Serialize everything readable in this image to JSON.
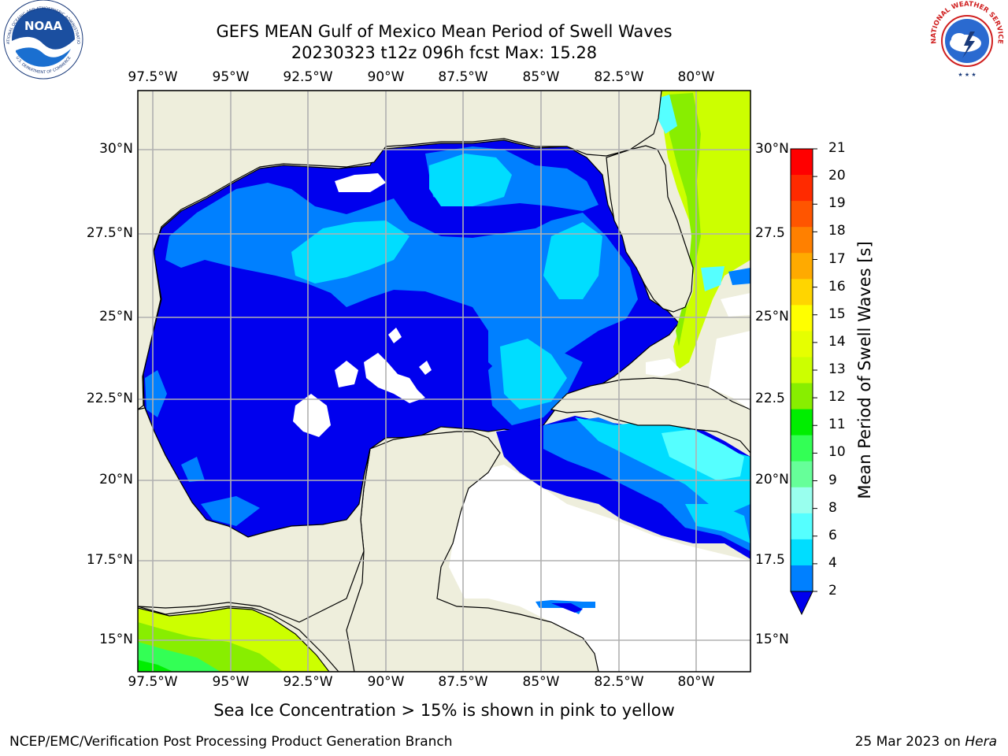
{
  "title": {
    "line1": "GEFS MEAN Gulf of Mexico Mean Period of Swell Waves",
    "line2": "20230323 t12z 096h fcst   Max: 15.28"
  },
  "map": {
    "lon_labels": [
      "97.5°W",
      "95°W",
      "92.5°W",
      "90°W",
      "87.5°W",
      "85°W",
      "82.5°W",
      "80°W"
    ],
    "lat_labels_left": [
      "30°N",
      "27.5°N",
      "25°N",
      "22.5°N",
      "20°N",
      "17.5°N",
      "15°N"
    ],
    "lat_labels_right": [
      "30°N",
      "27.5",
      "25°N",
      "22.5",
      "20°N",
      "17.5",
      "15°N"
    ],
    "land_color": "#eeeedc",
    "grid_color": "#b0b0b0"
  },
  "colorbar": {
    "title": "Mean Period of Swell Waves [s]",
    "ticks": [
      "21",
      "20",
      "19",
      "18",
      "17",
      "16",
      "15",
      "14",
      "13",
      "12",
      "11",
      "10",
      "9",
      "8",
      "6",
      "4",
      "2"
    ],
    "colors": [
      "#ff0000",
      "#ff2a00",
      "#ff5500",
      "#ff8000",
      "#ffaa00",
      "#ffd500",
      "#ffff00",
      "#e6ff00",
      "#ccff00",
      "#88ee00",
      "#00ee00",
      "#33ff55",
      "#66ff99",
      "#99ffee",
      "#55ffff",
      "#00ddff",
      "#0080ff"
    ],
    "extend_color": "#0000ee"
  },
  "note": "Sea Ice Concentration > 15% is shown in pink to yellow",
  "footer": {
    "left": "NCEP/EMC/Verification Post Processing Product Generation Branch",
    "date": "25 Mar 2023 on ",
    "machine": "Hera"
  },
  "logos": {
    "noaa_label": "NOAA",
    "noaa_ring_top": "NATIONAL OCEANIC AND ATMOSPHERIC ADMINISTRATION",
    "noaa_ring_bottom": "U.S. DEPARTMENT OF COMMERCE",
    "nws_ring": "NATIONAL WEATHER SERVICE"
  }
}
